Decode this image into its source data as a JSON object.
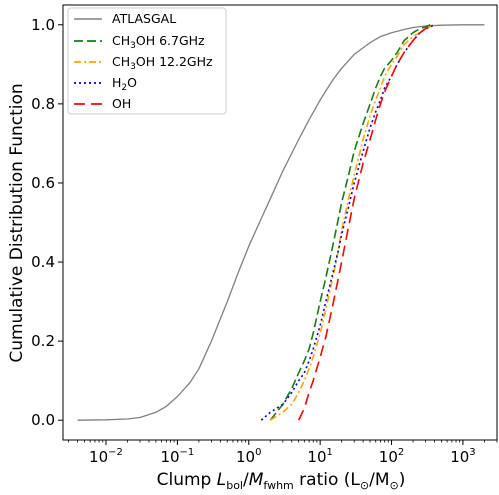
{
  "chart_data": {
    "type": "line",
    "xlabel": {
      "prefix": "Clump ",
      "L": "L",
      "L_sub": "bol",
      "slash": "/",
      "M": "M",
      "M_sub": "fwhm",
      "suffix_a": " ratio (L",
      "suffix_b": "/M",
      "suffix_c": ")",
      "sun": "⊙"
    },
    "ylabel": "Cumulative Distribution Function",
    "xscale": "log",
    "xlim": [
      0.0025,
      3000
    ],
    "ylim": [
      -0.05,
      1.05
    ],
    "x_ticks": [
      {
        "base": "10",
        "exp": "−2",
        "value": 0.01
      },
      {
        "base": "10",
        "exp": "−1",
        "value": 0.1
      },
      {
        "base": "10",
        "exp": "0",
        "value": 1
      },
      {
        "base": "10",
        "exp": "1",
        "value": 10
      },
      {
        "base": "10",
        "exp": "2",
        "value": 100
      },
      {
        "base": "10",
        "exp": "3",
        "value": 1000
      }
    ],
    "y_ticks": [
      {
        "label": "0.0",
        "value": 0.0
      },
      {
        "label": "0.2",
        "value": 0.2
      },
      {
        "label": "0.4",
        "value": 0.4
      },
      {
        "label": "0.6",
        "value": 0.6
      },
      {
        "label": "0.8",
        "value": 0.8
      },
      {
        "label": "1.0",
        "value": 1.0
      }
    ],
    "grid": false,
    "legend_position": "upper left",
    "series": [
      {
        "name": "ATLASGAL",
        "style": "solid",
        "color": "#808080",
        "x": [
          0.004,
          0.01,
          0.02,
          0.03,
          0.05,
          0.07,
          0.1,
          0.15,
          0.2,
          0.3,
          0.5,
          0.7,
          1,
          1.5,
          2,
          3,
          5,
          7,
          10,
          15,
          20,
          30,
          50,
          70,
          100,
          150,
          200,
          300,
          500,
          1000,
          2000
        ],
        "y": [
          0.0,
          0.001,
          0.003,
          0.007,
          0.02,
          0.035,
          0.06,
          0.095,
          0.13,
          0.2,
          0.3,
          0.37,
          0.44,
          0.51,
          0.56,
          0.63,
          0.71,
          0.76,
          0.81,
          0.86,
          0.89,
          0.925,
          0.955,
          0.97,
          0.98,
          0.988,
          0.993,
          0.997,
          0.999,
          1.0,
          1.0
        ]
      },
      {
        "name": "CH3OH 6.7GHz",
        "name_parts": [
          "CH",
          "3",
          "OH 6.7GHz"
        ],
        "style": "dashed",
        "color": "#1a7a1a",
        "x": [
          2,
          3,
          4,
          5,
          6,
          7,
          8,
          10,
          12,
          15,
          18,
          20,
          25,
          30,
          40,
          50,
          60,
          70,
          80,
          100,
          120,
          150,
          200,
          250,
          300,
          350
        ],
        "y": [
          0.0,
          0.04,
          0.08,
          0.12,
          0.15,
          0.18,
          0.22,
          0.3,
          0.36,
          0.44,
          0.51,
          0.55,
          0.62,
          0.68,
          0.75,
          0.8,
          0.84,
          0.87,
          0.89,
          0.91,
          0.93,
          0.96,
          0.98,
          0.99,
          0.995,
          1.0
        ]
      },
      {
        "name": "CH3OH 12.2GHz",
        "name_parts": [
          "CH",
          "3",
          "OH 12.2GHz"
        ],
        "style": "dashdot",
        "color": "#ffa500",
        "x": [
          2,
          3,
          4,
          5,
          6,
          7,
          8,
          10,
          12,
          15,
          18,
          20,
          25,
          30,
          40,
          50,
          60,
          70,
          80,
          100,
          120,
          150,
          200,
          250,
          300,
          400
        ],
        "y": [
          0.0,
          0.02,
          0.04,
          0.07,
          0.1,
          0.13,
          0.16,
          0.22,
          0.28,
          0.36,
          0.43,
          0.48,
          0.56,
          0.62,
          0.71,
          0.77,
          0.81,
          0.84,
          0.87,
          0.9,
          0.92,
          0.95,
          0.97,
          0.98,
          0.99,
          1.0
        ]
      },
      {
        "name": "H2O",
        "name_parts": [
          "H",
          "2",
          "O"
        ],
        "style": "dotted",
        "color": "#0000cc",
        "x": [
          1.5,
          2,
          3,
          4,
          5,
          6,
          7,
          8,
          10,
          12,
          15,
          18,
          20,
          25,
          30,
          40,
          50,
          60,
          70,
          80,
          100,
          120,
          150,
          200,
          250,
          300,
          400
        ],
        "y": [
          0.0,
          0.02,
          0.04,
          0.07,
          0.1,
          0.12,
          0.15,
          0.18,
          0.24,
          0.3,
          0.37,
          0.43,
          0.47,
          0.54,
          0.6,
          0.68,
          0.74,
          0.78,
          0.81,
          0.84,
          0.87,
          0.9,
          0.93,
          0.96,
          0.98,
          0.99,
          1.0
        ]
      },
      {
        "name": "OH",
        "style": "longdash",
        "color": "#ff0000",
        "x": [
          5,
          6,
          7,
          8,
          10,
          12,
          15,
          18,
          20,
          25,
          30,
          40,
          50,
          60,
          70,
          80,
          100,
          120,
          150,
          200,
          250,
          300,
          350
        ],
        "y": [
          0.0,
          0.03,
          0.07,
          0.1,
          0.16,
          0.21,
          0.29,
          0.36,
          0.4,
          0.49,
          0.56,
          0.65,
          0.71,
          0.76,
          0.8,
          0.83,
          0.87,
          0.9,
          0.93,
          0.96,
          0.98,
          0.99,
          1.0
        ]
      }
    ]
  }
}
